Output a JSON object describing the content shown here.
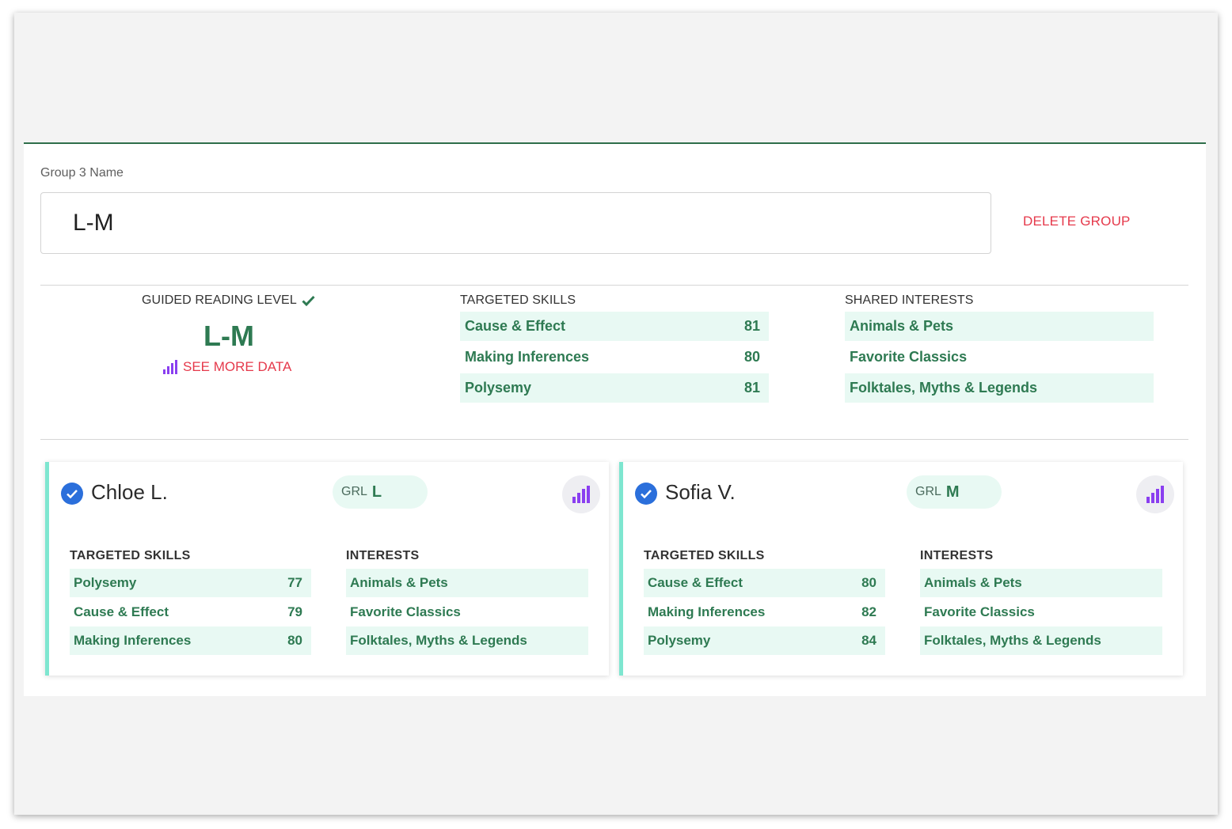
{
  "group": {
    "label": "Group 3 Name",
    "name_value": "L-M",
    "delete_label": "DELETE GROUP"
  },
  "summary": {
    "grl_heading": "GUIDED READING LEVEL",
    "grl_value": "L-M",
    "see_more_label": "SEE MORE DATA",
    "skills_heading": "TARGETED SKILLS",
    "skills": [
      {
        "name": "Cause & Effect",
        "score": "81"
      },
      {
        "name": "Making Inferences",
        "score": "80"
      },
      {
        "name": "Polysemy",
        "score": "81"
      }
    ],
    "interests_heading": "SHARED INTERESTS",
    "interests": [
      "Animals & Pets",
      "Favorite Classics",
      "Folktales, Myths & Legends"
    ]
  },
  "students": [
    {
      "name": "Chloe L.",
      "grl_label": "GRL",
      "grl_value": "L",
      "skills_heading": "TARGETED SKILLS",
      "skills": [
        {
          "name": "Polysemy",
          "score": "77"
        },
        {
          "name": "Cause & Effect",
          "score": "79"
        },
        {
          "name": "Making Inferences",
          "score": "80"
        }
      ],
      "interests_heading": "INTERESTS",
      "interests": [
        "Animals & Pets",
        "Favorite Classics",
        "Folktales, Myths & Legends"
      ]
    },
    {
      "name": "Sofia V.",
      "grl_label": "GRL",
      "grl_value": "M",
      "skills_heading": "TARGETED SKILLS",
      "skills": [
        {
          "name": "Cause & Effect",
          "score": "80"
        },
        {
          "name": "Making Inferences",
          "score": "82"
        },
        {
          "name": "Polysemy",
          "score": "84"
        }
      ],
      "interests_heading": "INTERESTS",
      "interests": [
        "Animals & Pets",
        "Favorite Classics",
        "Folktales, Myths & Legends"
      ]
    }
  ],
  "colors": {
    "accent_green": "#2e7a52",
    "shade": "#e8f9f3",
    "danger": "#e5394b",
    "check_blue": "#2b6fdb",
    "chart_purple": "#8a3ff0",
    "card_accent": "#7ee6d0"
  },
  "icons": {
    "verified": "check-icon",
    "data": "bar-chart-icon",
    "selected": "check-circle-icon"
  }
}
